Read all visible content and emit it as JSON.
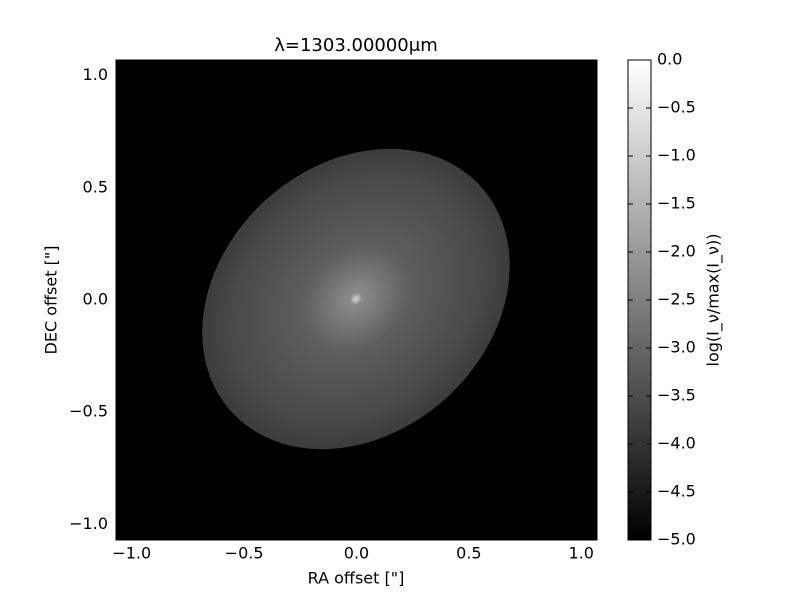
{
  "chart_data": {
    "type": "image",
    "title": "λ=1303.00000μm",
    "x_label": "RA offset [\"]",
    "y_label": "DEC offset [\"]",
    "xlim": [
      -1.07,
      1.07
    ],
    "ylim": [
      -1.07,
      1.07
    ],
    "xticks": [
      {
        "value": -1,
        "label": "−1.0"
      },
      {
        "value": -0.5,
        "label": "−0.5"
      },
      {
        "value": 0,
        "label": "0.0"
      },
      {
        "value": 0.5,
        "label": "0.5"
      },
      {
        "value": 1,
        "label": "1.0"
      }
    ],
    "yticks": [
      {
        "value": -1,
        "label": "−1.0"
      },
      {
        "value": -0.5,
        "label": "−0.5"
      },
      {
        "value": 0,
        "label": "0.0"
      },
      {
        "value": 0.5,
        "label": "0.5"
      },
      {
        "value": 1,
        "label": "1.0"
      }
    ],
    "colorbar": {
      "label": "log(I_ν/max(I_ν))",
      "lim": [
        -5,
        0
      ],
      "ticks": [
        {
          "value": 0,
          "label": "0.0"
        },
        {
          "value": -0.5,
          "label": "−0.5"
        },
        {
          "value": -1,
          "label": "−1.0"
        },
        {
          "value": -1.5,
          "label": "−1.5"
        },
        {
          "value": -2,
          "label": "−2.0"
        },
        {
          "value": -2.5,
          "label": "−2.5"
        },
        {
          "value": -3,
          "label": "−3.0"
        },
        {
          "value": -3.5,
          "label": "−3.5"
        },
        {
          "value": -4,
          "label": "−4.0"
        },
        {
          "value": -4.5,
          "label": "−4.5"
        },
        {
          "value": -5,
          "label": "−5.0"
        }
      ]
    }
  }
}
